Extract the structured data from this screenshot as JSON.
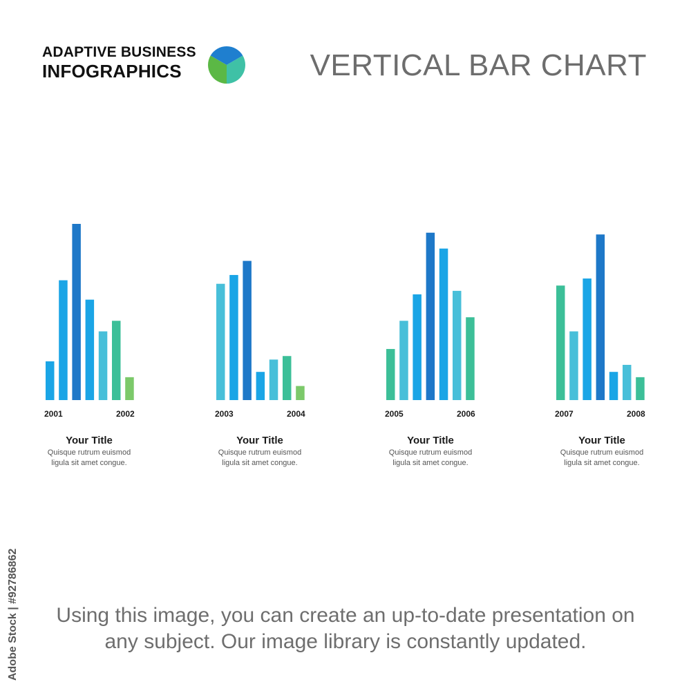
{
  "brand": {
    "line1": "ADAPTIVE BUSINESS",
    "line2": "INFOGRAPHICS",
    "logo_colors": [
      "#1f7fcf",
      "#3fc1a6",
      "#5bb845"
    ]
  },
  "page_title": "VERTICAL BAR CHART",
  "colors": {
    "blue_dark": "#1e78c8",
    "blue": "#1aa5e6",
    "cyan": "#48bfd9",
    "teal": "#3cbf98",
    "green": "#7cc96a"
  },
  "chart_data": [
    {
      "type": "bar",
      "x_start_label": "2001",
      "x_end_label": "2002",
      "values": [
        22,
        68,
        100,
        57,
        39,
        45,
        13
      ],
      "bar_colors": [
        "#1aa5e6",
        "#1aa5e6",
        "#1e78c8",
        "#1aa5e6",
        "#48bfd9",
        "#3cbf98",
        "#7cc96a"
      ],
      "ylim": [
        0,
        100
      ]
    },
    {
      "type": "bar",
      "x_start_label": "2003",
      "x_end_label": "2004",
      "values": [
        66,
        71,
        79,
        16,
        23,
        25,
        8
      ],
      "bar_colors": [
        "#48bfd9",
        "#1aa5e6",
        "#1e78c8",
        "#1aa5e6",
        "#48bfd9",
        "#3cbf98",
        "#7cc96a"
      ],
      "ylim": [
        0,
        100
      ]
    },
    {
      "type": "bar",
      "x_start_label": "2005",
      "x_end_label": "2006",
      "values": [
        29,
        45,
        60,
        95,
        86,
        62,
        47
      ],
      "bar_colors": [
        "#3cbf98",
        "#48bfd9",
        "#1aa5e6",
        "#1e78c8",
        "#1aa5e6",
        "#48bfd9",
        "#3cbf98"
      ],
      "ylim": [
        0,
        100
      ]
    },
    {
      "type": "bar",
      "x_start_label": "2007",
      "x_end_label": "2008",
      "values": [
        65,
        39,
        69,
        94,
        16,
        20,
        13
      ],
      "bar_colors": [
        "#3cbf98",
        "#48bfd9",
        "#1aa5e6",
        "#1e78c8",
        "#1aa5e6",
        "#48bfd9",
        "#3cbf98"
      ],
      "ylim": [
        0,
        100
      ]
    }
  ],
  "cards": [
    {
      "title": "Your Title",
      "desc_line1": "Quisque rutrum euismod",
      "desc_line2": "ligula sit amet congue."
    },
    {
      "title": "Your Title",
      "desc_line1": "Quisque rutrum euismod",
      "desc_line2": "ligula sit amet congue."
    },
    {
      "title": "Your Title",
      "desc_line1": "Quisque rutrum euismod",
      "desc_line2": "ligula sit amet congue."
    },
    {
      "title": "Your Title",
      "desc_line1": "Quisque rutrum euismod",
      "desc_line2": "ligula sit amet congue."
    }
  ],
  "footer": {
    "line1": "Using this image, you can create an up-to-date presentation on",
    "line2": "any subject. Our image library is constantly updated."
  },
  "stock_id": "Adobe Stock | #92786862"
}
